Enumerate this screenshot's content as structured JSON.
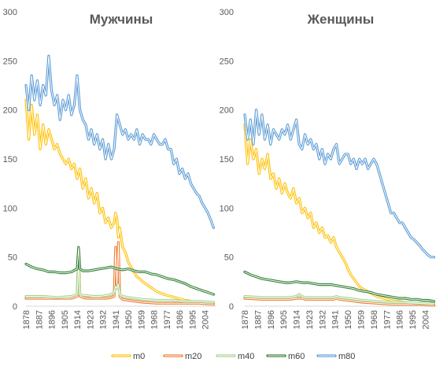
{
  "chart_data": [
    {
      "type": "line",
      "title": "Мужчины",
      "ylim": [
        0,
        300
      ],
      "yticks": [
        "0",
        "50",
        "100",
        "150",
        "200",
        "250",
        "300"
      ],
      "xlim": [
        1878,
        2012
      ],
      "xticks": [
        "1878",
        "1887",
        "1896",
        "1905",
        "1914",
        "1923",
        "1932",
        "1941",
        "1950",
        "1959",
        "1968",
        "1977",
        "1986",
        "1995",
        "2004"
      ],
      "series": [
        {
          "name": "m0",
          "color": "#FFC000",
          "x": [
            1878,
            1880,
            1882,
            1884,
            1886,
            1888,
            1890,
            1892,
            1894,
            1896,
            1898,
            1900,
            1902,
            1904,
            1906,
            1908,
            1910,
            1912,
            1914,
            1916,
            1918,
            1920,
            1922,
            1924,
            1926,
            1928,
            1930,
            1932,
            1934,
            1936,
            1938,
            1940,
            1941,
            1942,
            1943,
            1944,
            1946,
            1948,
            1950,
            1952,
            1954,
            1956,
            1958,
            1960,
            1965,
            1970,
            1975,
            1980,
            1985,
            1990,
            1995,
            2000,
            2005,
            2010
          ],
          "y": [
            210,
            170,
            205,
            175,
            195,
            160,
            185,
            165,
            180,
            170,
            160,
            165,
            155,
            150,
            145,
            150,
            140,
            145,
            130,
            140,
            120,
            130,
            110,
            120,
            105,
            115,
            95,
            100,
            85,
            90,
            80,
            85,
            95,
            90,
            70,
            80,
            60,
            55,
            45,
            40,
            35,
            30,
            28,
            25,
            20,
            15,
            12,
            10,
            8,
            6,
            5,
            4,
            3,
            3
          ]
        },
        {
          "name": "m20",
          "color": "#ED7D31",
          "x": [
            1878,
            1890,
            1900,
            1910,
            1912,
            1914,
            1915,
            1916,
            1918,
            1920,
            1925,
            1930,
            1935,
            1938,
            1940,
            1941,
            1942,
            1943,
            1944,
            1945,
            1946,
            1950,
            1960,
            1970,
            1980,
            1990,
            2000,
            2010
          ],
          "y": [
            8,
            8,
            8,
            8,
            9,
            10,
            55,
            10,
            9,
            8,
            8,
            8,
            8,
            9,
            10,
            60,
            20,
            65,
            10,
            8,
            7,
            6,
            4,
            3,
            3,
            3,
            3,
            2
          ]
        },
        {
          "name": "m40",
          "color": "#A9D18E",
          "x": [
            1878,
            1890,
            1900,
            1910,
            1912,
            1914,
            1915,
            1916,
            1918,
            1920,
            1925,
            1930,
            1935,
            1938,
            1940,
            1941,
            1942,
            1943,
            1944,
            1946,
            1950,
            1960,
            1970,
            1980,
            1990,
            2000,
            2010
          ],
          "y": [
            10,
            10,
            9,
            10,
            11,
            12,
            45,
            12,
            11,
            11,
            10,
            10,
            11,
            12,
            14,
            20,
            18,
            22,
            12,
            10,
            9,
            7,
            6,
            6,
            5,
            5,
            4
          ]
        },
        {
          "name": "m60",
          "color": "#2E7D32",
          "x": [
            1878,
            1882,
            1886,
            1890,
            1894,
            1898,
            1902,
            1906,
            1910,
            1914,
            1915,
            1916,
            1918,
            1922,
            1926,
            1930,
            1934,
            1938,
            1942,
            1946,
            1950,
            1954,
            1958,
            1962,
            1966,
            1970,
            1974,
            1978,
            1982,
            1986,
            1990,
            1994,
            1998,
            2002,
            2006,
            2010
          ],
          "y": [
            43,
            40,
            38,
            37,
            35,
            35,
            34,
            34,
            35,
            38,
            60,
            38,
            36,
            36,
            37,
            38,
            39,
            40,
            38,
            37,
            38,
            36,
            35,
            35,
            33,
            32,
            30,
            28,
            27,
            25,
            23,
            20,
            18,
            16,
            14,
            12
          ]
        },
        {
          "name": "m80",
          "color": "#5B9BD5",
          "x": [
            1878,
            1880,
            1882,
            1884,
            1886,
            1888,
            1890,
            1892,
            1894,
            1896,
            1898,
            1900,
            1902,
            1904,
            1906,
            1908,
            1910,
            1912,
            1914,
            1916,
            1918,
            1920,
            1922,
            1924,
            1926,
            1928,
            1930,
            1932,
            1934,
            1936,
            1938,
            1940,
            1942,
            1944,
            1946,
            1948,
            1950,
            1952,
            1954,
            1956,
            1958,
            1960,
            1962,
            1964,
            1966,
            1968,
            1970,
            1972,
            1974,
            1976,
            1978,
            1980,
            1982,
            1984,
            1986,
            1988,
            1990,
            1992,
            1994,
            1996,
            1998,
            2000,
            2002,
            2004,
            2006,
            2008,
            2010
          ],
          "y": [
            225,
            200,
            235,
            210,
            230,
            205,
            225,
            215,
            255,
            220,
            205,
            215,
            190,
            210,
            200,
            215,
            195,
            205,
            235,
            200,
            190,
            185,
            170,
            180,
            165,
            175,
            160,
            170,
            150,
            165,
            150,
            160,
            195,
            185,
            175,
            180,
            170,
            175,
            170,
            180,
            165,
            175,
            170,
            170,
            165,
            175,
            170,
            165,
            165,
            170,
            160,
            160,
            145,
            150,
            135,
            140,
            130,
            135,
            125,
            120,
            115,
            112,
            105,
            100,
            95,
            88,
            80
          ]
        }
      ]
    },
    {
      "type": "line",
      "title": "Женщины",
      "ylim": [
        0,
        300
      ],
      "yticks": [
        "0",
        "50",
        "100",
        "150",
        "200",
        "250",
        "300"
      ],
      "xlim": [
        1878,
        2012
      ],
      "xticks": [
        "1878",
        "1887",
        "1896",
        "1905",
        "1914",
        "1923",
        "1932",
        "1941",
        "1950",
        "1959",
        "1968",
        "1977",
        "1986",
        "1995",
        "2004"
      ],
      "series": [
        {
          "name": "m0",
          "color": "#FFC000",
          "x": [
            1878,
            1880,
            1882,
            1884,
            1886,
            1888,
            1890,
            1892,
            1894,
            1896,
            1898,
            1900,
            1902,
            1904,
            1906,
            1908,
            1910,
            1912,
            1914,
            1916,
            1918,
            1920,
            1922,
            1924,
            1926,
            1928,
            1930,
            1932,
            1934,
            1936,
            1938,
            1940,
            1942,
            1944,
            1946,
            1948,
            1950,
            1952,
            1954,
            1956,
            1958,
            1960,
            1965,
            1970,
            1975,
            1980,
            1985,
            1990,
            1995,
            2000,
            2005,
            2010
          ],
          "y": [
            185,
            145,
            170,
            150,
            160,
            135,
            150,
            140,
            155,
            130,
            135,
            120,
            130,
            115,
            125,
            115,
            110,
            120,
            105,
            110,
            95,
            100,
            90,
            95,
            80,
            85,
            75,
            80,
            70,
            72,
            65,
            70,
            60,
            55,
            50,
            45,
            38,
            32,
            28,
            24,
            20,
            18,
            14,
            10,
            8,
            6,
            5,
            4,
            3,
            3,
            2,
            2
          ]
        },
        {
          "name": "m20",
          "color": "#ED7D31",
          "x": [
            1878,
            1890,
            1900,
            1910,
            1914,
            1918,
            1920,
            1930,
            1940,
            1942,
            1944,
            1950,
            1960,
            1970,
            1980,
            1990,
            2000,
            2010
          ],
          "y": [
            8,
            7,
            7,
            7,
            8,
            8,
            7,
            7,
            7,
            8,
            7,
            6,
            4,
            3,
            2,
            2,
            2,
            1
          ]
        },
        {
          "name": "m40",
          "color": "#A9D18E",
          "x": [
            1878,
            1890,
            1900,
            1910,
            1914,
            1916,
            1918,
            1920,
            1930,
            1940,
            1942,
            1944,
            1950,
            1960,
            1970,
            1980,
            1990,
            2000,
            2010
          ],
          "y": [
            10,
            9,
            9,
            9,
            10,
            12,
            10,
            9,
            9,
            9,
            10,
            9,
            8,
            6,
            5,
            4,
            4,
            3,
            3
          ]
        },
        {
          "name": "m60",
          "color": "#2E7D32",
          "x": [
            1878,
            1882,
            1886,
            1890,
            1894,
            1898,
            1902,
            1906,
            1910,
            1914,
            1918,
            1922,
            1926,
            1930,
            1934,
            1938,
            1942,
            1946,
            1950,
            1954,
            1958,
            1962,
            1966,
            1970,
            1974,
            1978,
            1982,
            1986,
            1990,
            1994,
            1998,
            2002,
            2006,
            2010
          ],
          "y": [
            35,
            32,
            30,
            28,
            27,
            26,
            25,
            24,
            24,
            25,
            24,
            24,
            23,
            22,
            22,
            22,
            21,
            20,
            19,
            18,
            16,
            15,
            14,
            12,
            11,
            10,
            9,
            8,
            8,
            7,
            7,
            6,
            6,
            5
          ]
        },
        {
          "name": "m80",
          "color": "#5B9BD5",
          "x": [
            1878,
            1880,
            1882,
            1884,
            1886,
            1888,
            1890,
            1892,
            1894,
            1896,
            1898,
            1900,
            1902,
            1904,
            1906,
            1908,
            1910,
            1912,
            1914,
            1916,
            1918,
            1920,
            1922,
            1924,
            1926,
            1928,
            1930,
            1932,
            1934,
            1936,
            1938,
            1940,
            1942,
            1944,
            1946,
            1948,
            1950,
            1952,
            1954,
            1956,
            1958,
            1960,
            1962,
            1964,
            1966,
            1968,
            1970,
            1972,
            1974,
            1976,
            1978,
            1980,
            1982,
            1984,
            1986,
            1988,
            1990,
            1992,
            1994,
            1996,
            1998,
            2000,
            2002,
            2004,
            2006,
            2008,
            2010
          ],
          "y": [
            195,
            170,
            190,
            165,
            200,
            175,
            195,
            170,
            185,
            165,
            180,
            175,
            170,
            180,
            175,
            185,
            170,
            180,
            190,
            165,
            160,
            175,
            165,
            170,
            160,
            165,
            150,
            160,
            145,
            155,
            150,
            160,
            165,
            145,
            150,
            155,
            155,
            145,
            150,
            140,
            150,
            145,
            150,
            140,
            145,
            150,
            145,
            135,
            125,
            115,
            105,
            95,
            95,
            90,
            85,
            85,
            80,
            75,
            70,
            68,
            65,
            62,
            58,
            55,
            52,
            50,
            50
          ]
        }
      ]
    }
  ],
  "legend": [
    {
      "label": "m0",
      "color": "#FFC000"
    },
    {
      "label": "m20",
      "color": "#ED7D31"
    },
    {
      "label": "m40",
      "color": "#A9D18E"
    },
    {
      "label": "m60",
      "color": "#2E7D32"
    },
    {
      "label": "m80",
      "color": "#5B9BD5"
    }
  ]
}
